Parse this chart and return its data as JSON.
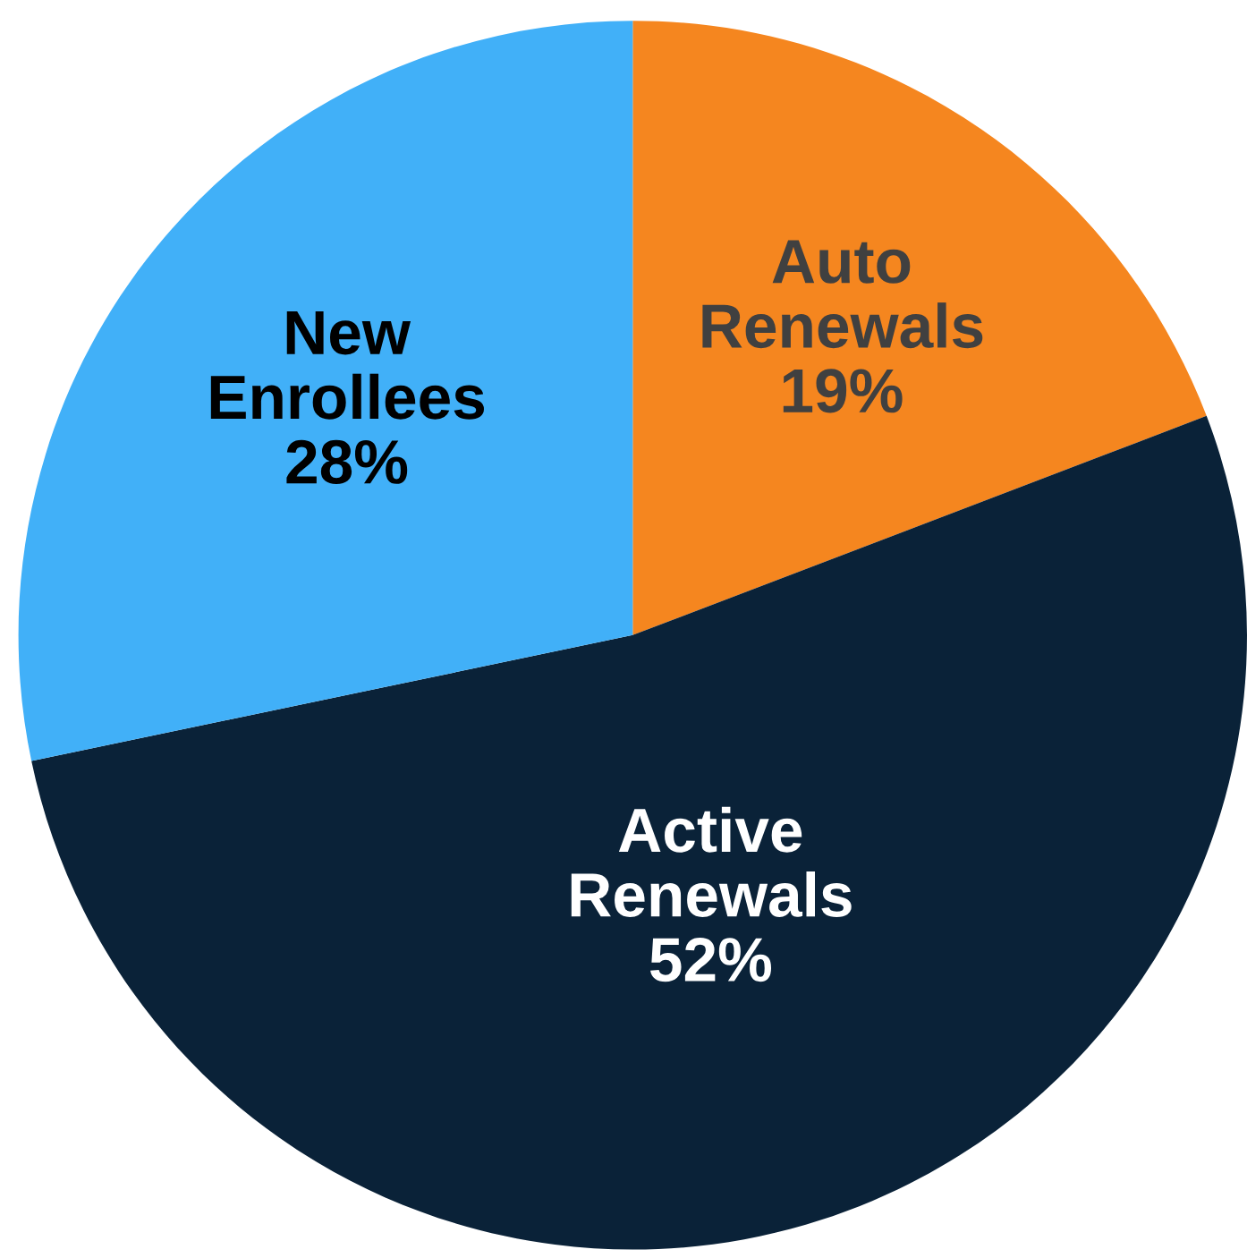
{
  "chart_data": {
    "type": "pie",
    "categories": [
      "Auto Renewals",
      "Active Renewals",
      "New Enrollees"
    ],
    "values": [
      19,
      52,
      28
    ],
    "value_labels": [
      "19%",
      "52%",
      "28%"
    ],
    "colors": [
      "#f5861f",
      "#0a2238",
      "#41b0f8"
    ],
    "legend": false
  }
}
